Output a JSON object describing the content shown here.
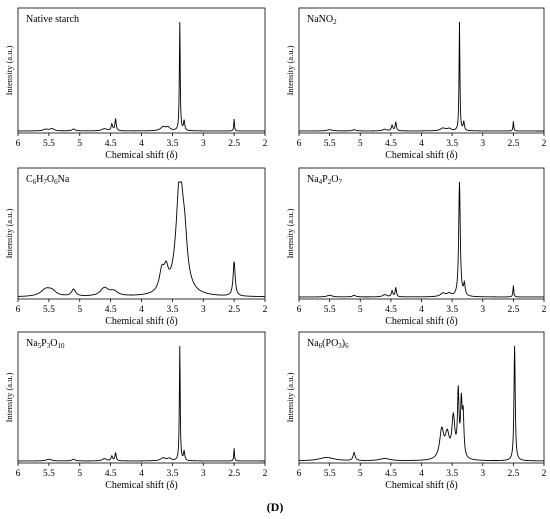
{
  "figure_label": "(D)",
  "chart_data": [
    {
      "type": "line",
      "title": "Native starch",
      "xlabel": "Chemical shift (δ)",
      "ylabel": "Intensity (a.u.)",
      "xlim": [
        6,
        2
      ],
      "xticks": [
        6,
        5.5,
        5,
        4.5,
        4,
        3.5,
        3,
        2.5,
        2
      ],
      "ylim": [
        0,
        1
      ],
      "peaks": [
        {
          "x": 5.55,
          "y": 0.015,
          "w": 0.05
        },
        {
          "x": 5.45,
          "y": 0.02,
          "w": 0.04
        },
        {
          "x": 5.1,
          "y": 0.018,
          "w": 0.03
        },
        {
          "x": 4.6,
          "y": 0.02,
          "w": 0.05
        },
        {
          "x": 4.48,
          "y": 0.06,
          "w": 0.015
        },
        {
          "x": 4.42,
          "y": 0.11,
          "w": 0.012
        },
        {
          "x": 3.65,
          "y": 0.035,
          "w": 0.05
        },
        {
          "x": 3.57,
          "y": 0.03,
          "w": 0.04
        },
        {
          "x": 3.38,
          "y": 1.0,
          "w": 0.008
        },
        {
          "x": 3.31,
          "y": 0.09,
          "w": 0.012
        },
        {
          "x": 2.5,
          "y": 0.11,
          "w": 0.007
        }
      ]
    },
    {
      "type": "line",
      "title": "NaNO",
      "title_sub": "2",
      "xlabel": "Chemical shift (δ)",
      "ylabel": "Intensity (a.u.)",
      "xlim": [
        6,
        2
      ],
      "xticks": [
        6,
        5.5,
        5,
        4.5,
        4,
        3.5,
        3,
        2.5,
        2
      ],
      "ylim": [
        0,
        1
      ],
      "peaks": [
        {
          "x": 5.5,
          "y": 0.012,
          "w": 0.05
        },
        {
          "x": 5.1,
          "y": 0.012,
          "w": 0.03
        },
        {
          "x": 4.6,
          "y": 0.015,
          "w": 0.04
        },
        {
          "x": 4.48,
          "y": 0.05,
          "w": 0.015
        },
        {
          "x": 4.42,
          "y": 0.08,
          "w": 0.012
        },
        {
          "x": 3.65,
          "y": 0.025,
          "w": 0.05
        },
        {
          "x": 3.55,
          "y": 0.02,
          "w": 0.04
        },
        {
          "x": 3.38,
          "y": 1.0,
          "w": 0.008
        },
        {
          "x": 3.31,
          "y": 0.08,
          "w": 0.012
        },
        {
          "x": 2.5,
          "y": 0.09,
          "w": 0.007
        }
      ]
    },
    {
      "type": "line",
      "title": "C",
      "title_parts": [
        {
          "t": "C"
        },
        {
          "t": "6",
          "s": true
        },
        {
          "t": "H"
        },
        {
          "t": "7",
          "s": true
        },
        {
          "t": "O"
        },
        {
          "t": "6",
          "s": true
        },
        {
          "t": "Na"
        }
      ],
      "xlabel": "Chemical shift (δ)",
      "ylabel": "Intensity (a.u.)",
      "xlim": [
        6,
        2
      ],
      "xticks": [
        6,
        5.5,
        5,
        4.5,
        4,
        3.5,
        3,
        2.5,
        2
      ],
      "ylim": [
        0,
        1
      ],
      "peaks": [
        {
          "x": 5.55,
          "y": 0.06,
          "w": 0.1
        },
        {
          "x": 5.45,
          "y": 0.04,
          "w": 0.08
        },
        {
          "x": 5.1,
          "y": 0.06,
          "w": 0.04
        },
        {
          "x": 4.6,
          "y": 0.07,
          "w": 0.08
        },
        {
          "x": 4.45,
          "y": 0.04,
          "w": 0.08
        },
        {
          "x": 3.67,
          "y": 0.18,
          "w": 0.05
        },
        {
          "x": 3.6,
          "y": 0.15,
          "w": 0.04
        },
        {
          "x": 3.38,
          "y": 1.0,
          "w": 0.07
        },
        {
          "x": 3.3,
          "y": 0.3,
          "w": 0.05
        },
        {
          "x": 2.5,
          "y": 0.3,
          "w": 0.02
        }
      ]
    },
    {
      "type": "line",
      "title": "Na",
      "title_parts": [
        {
          "t": "Na"
        },
        {
          "t": "4",
          "s": true
        },
        {
          "t": "P"
        },
        {
          "t": "2",
          "s": true
        },
        {
          "t": "O"
        },
        {
          "t": "7",
          "s": true
        }
      ],
      "xlabel": "Chemical shift (δ)",
      "ylabel": "Intensity (a.u.)",
      "xlim": [
        6,
        2
      ],
      "xticks": [
        6,
        5.5,
        5,
        4.5,
        4,
        3.5,
        3,
        2.5,
        2
      ],
      "ylim": [
        0,
        1
      ],
      "peaks": [
        {
          "x": 5.5,
          "y": 0.015,
          "w": 0.05
        },
        {
          "x": 5.1,
          "y": 0.015,
          "w": 0.03
        },
        {
          "x": 4.6,
          "y": 0.02,
          "w": 0.04
        },
        {
          "x": 4.48,
          "y": 0.05,
          "w": 0.015
        },
        {
          "x": 4.42,
          "y": 0.08,
          "w": 0.012
        },
        {
          "x": 3.65,
          "y": 0.03,
          "w": 0.05
        },
        {
          "x": 3.55,
          "y": 0.025,
          "w": 0.04
        },
        {
          "x": 3.38,
          "y": 1.0,
          "w": 0.015
        },
        {
          "x": 3.3,
          "y": 0.1,
          "w": 0.015
        },
        {
          "x": 2.5,
          "y": 0.1,
          "w": 0.008
        }
      ]
    },
    {
      "type": "line",
      "title": "Na",
      "title_parts": [
        {
          "t": "Na"
        },
        {
          "t": "5",
          "s": true
        },
        {
          "t": "P"
        },
        {
          "t": "3",
          "s": true
        },
        {
          "t": "O"
        },
        {
          "t": "10",
          "s": true
        }
      ],
      "xlabel": "Chemical shift (δ)",
      "ylabel": "Intensity (a.u.)",
      "xlim": [
        6,
        2
      ],
      "xticks": [
        6,
        5.5,
        5,
        4.5,
        4,
        3.5,
        3,
        2.5,
        2
      ],
      "ylim": [
        0,
        1
      ],
      "peaks": [
        {
          "x": 5.5,
          "y": 0.015,
          "w": 0.05
        },
        {
          "x": 5.1,
          "y": 0.015,
          "w": 0.03
        },
        {
          "x": 4.6,
          "y": 0.02,
          "w": 0.04
        },
        {
          "x": 4.48,
          "y": 0.04,
          "w": 0.015
        },
        {
          "x": 4.42,
          "y": 0.07,
          "w": 0.012
        },
        {
          "x": 3.65,
          "y": 0.025,
          "w": 0.05
        },
        {
          "x": 3.55,
          "y": 0.02,
          "w": 0.04
        },
        {
          "x": 3.38,
          "y": 1.0,
          "w": 0.008
        },
        {
          "x": 3.31,
          "y": 0.08,
          "w": 0.012
        },
        {
          "x": 2.5,
          "y": 0.11,
          "w": 0.007
        }
      ]
    },
    {
      "type": "line",
      "title": "Na",
      "title_parts": [
        {
          "t": "Na"
        },
        {
          "t": "6",
          "s": true
        },
        {
          "t": "(PO"
        },
        {
          "t": "3",
          "s": true
        },
        {
          "t": ")"
        },
        {
          "t": "6",
          "s": true
        }
      ],
      "xlabel": "Chemical shift (δ)",
      "ylabel": "Intensity (a.u.)",
      "xlim": [
        6,
        2
      ],
      "xticks": [
        6,
        5.5,
        5,
        4.5,
        4,
        3.5,
        3,
        2.5,
        2
      ],
      "ylim": [
        0,
        1
      ],
      "peaks": [
        {
          "x": 5.55,
          "y": 0.03,
          "w": 0.15
        },
        {
          "x": 5.1,
          "y": 0.07,
          "w": 0.02
        },
        {
          "x": 4.6,
          "y": 0.02,
          "w": 0.1
        },
        {
          "x": 3.67,
          "y": 0.25,
          "w": 0.04
        },
        {
          "x": 3.58,
          "y": 0.2,
          "w": 0.04
        },
        {
          "x": 3.48,
          "y": 0.35,
          "w": 0.03
        },
        {
          "x": 3.4,
          "y": 0.55,
          "w": 0.015
        },
        {
          "x": 3.35,
          "y": 0.45,
          "w": 0.015
        },
        {
          "x": 3.32,
          "y": 0.35,
          "w": 0.015
        },
        {
          "x": 2.48,
          "y": 1.0,
          "w": 0.012
        }
      ]
    }
  ]
}
